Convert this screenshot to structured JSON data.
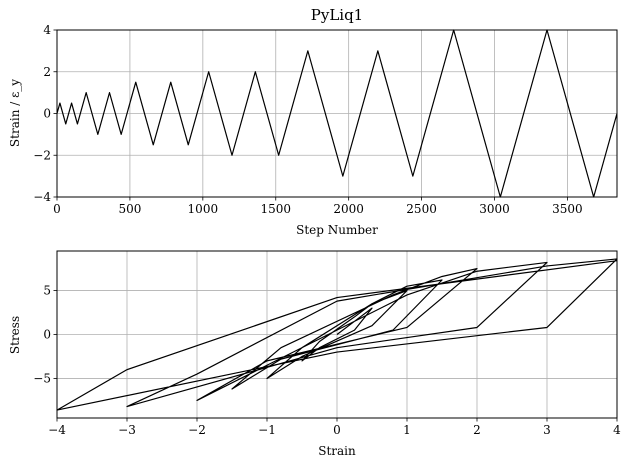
{
  "figure": {
    "title": "PyLiq1"
  },
  "chart_data": [
    {
      "type": "line",
      "title": "PyLiq1",
      "xlabel": "Step Number",
      "ylabel": "Strain / ε_y",
      "xlim": [
        0,
        3840
      ],
      "ylim": [
        -4,
        4
      ],
      "xticks": [
        0,
        500,
        1000,
        1500,
        2000,
        2500,
        3000,
        3500
      ],
      "yticks": [
        -4,
        -2,
        0,
        2,
        4
      ],
      "grid": true,
      "series": [
        {
          "color": "#000000",
          "x": [
            0,
            20,
            60,
            100,
            140,
            200,
            280,
            360,
            440,
            540,
            660,
            780,
            900,
            1040,
            1200,
            1360,
            1520,
            1720,
            1960,
            2200,
            2440,
            2720,
            3040,
            3360,
            3680,
            3840
          ],
          "y": [
            0,
            0.5,
            -0.5,
            0.5,
            -0.5,
            1,
            -1,
            1,
            -1,
            1.5,
            -1.5,
            1.5,
            -1.5,
            2,
            -2,
            2,
            -2,
            3,
            -3,
            3,
            -3,
            4,
            -4,
            4,
            -4,
            0
          ]
        }
      ]
    },
    {
      "type": "line",
      "title": "",
      "xlabel": "Strain",
      "ylabel": "Stress",
      "xlim": [
        -4,
        4
      ],
      "ylim": [
        -9.5,
        9.5
      ],
      "xticks": [
        -4,
        -3,
        -2,
        -1,
        0,
        1,
        2,
        3,
        4
      ],
      "yticks": [
        -5,
        0,
        5
      ],
      "grid": true,
      "series": [
        {
          "color": "#000000",
          "x": [
            0,
            0.25,
            0.5,
            0.25,
            -0.25,
            -0.5,
            -0.25,
            0.25,
            0.5,
            1.0,
            0.5,
            -0.5,
            -1.0,
            -0.5,
            0.5,
            1.0,
            1.5,
            0.8,
            -0.8,
            -1.5,
            -0.8,
            0.8,
            1.5,
            2.0,
            1.0,
            -1.0,
            -2.0,
            -1.0,
            1.0,
            2.0,
            3.0,
            2.0,
            0,
            -3.0,
            -2.0,
            0,
            3.0,
            4.0,
            3.0,
            0,
            -4.0,
            -3.0,
            0,
            4.0
          ],
          "y": [
            0,
            1.5,
            3.0,
            0.5,
            -1.5,
            -3.0,
            -0.8,
            2.0,
            3.5,
            5.0,
            1.0,
            -2.5,
            -5.0,
            -1.5,
            3.5,
            5.5,
            6.2,
            0.5,
            -2.8,
            -6.2,
            -1.5,
            4.5,
            6.6,
            7.5,
            0.8,
            -3.0,
            -7.5,
            -3.5,
            4.5,
            7.2,
            8.2,
            0.8,
            -1.5,
            -8.2,
            -4.5,
            3.8,
            7.8,
            8.6,
            0.8,
            -2.0,
            -8.6,
            -4.0,
            4.2,
            8.4
          ]
        }
      ]
    }
  ]
}
